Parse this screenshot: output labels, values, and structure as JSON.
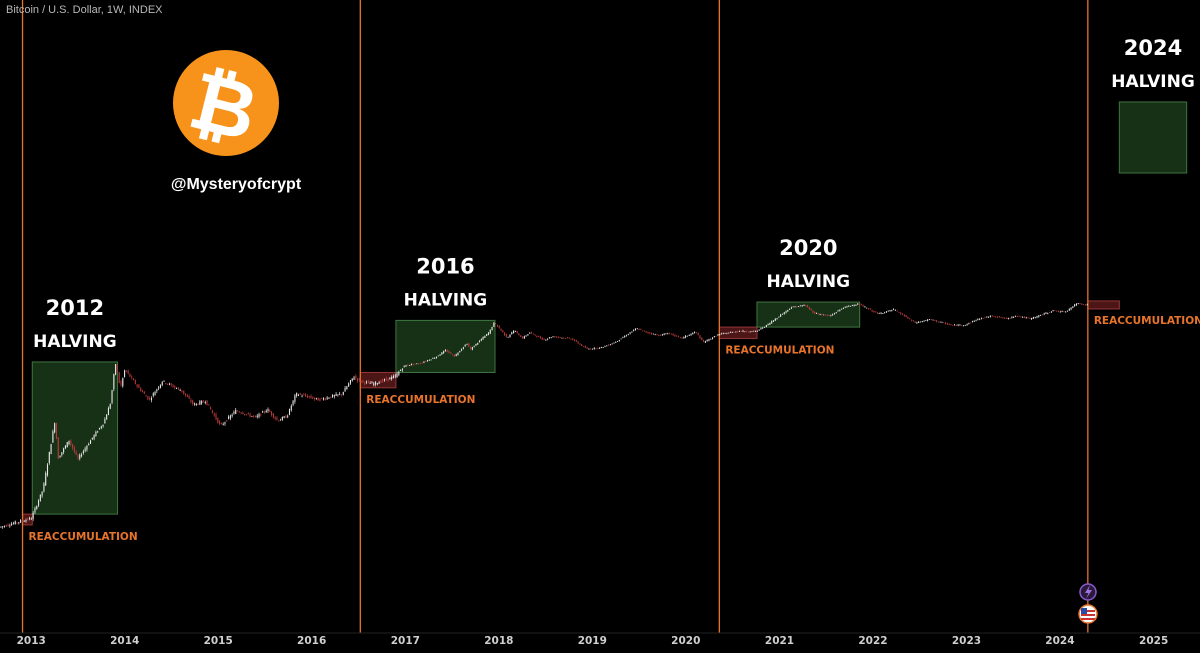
{
  "header": {
    "title": "Bitcoin / U.S. Dollar, 1W, INDEX"
  },
  "watermark": {
    "handle": "@Mysteryofcrypt",
    "logo_glyph": "₿",
    "logo_color": "#f7931a"
  },
  "colors": {
    "background": "#000000",
    "halving_line": "#e8742c",
    "reaccumulation_fill": "#5a1a1a",
    "reaccumulation_border": "#b04040",
    "growth_fill": "#1c3a1c",
    "growth_border": "#4a8a4a",
    "candle_up": "#e8e8e8",
    "candle_down": "#b83a3a",
    "label_white": "#ffffff",
    "label_orange": "#e8742c"
  },
  "icons": [
    "lightning-icon",
    "us-flag-icon"
  ],
  "chart_data": {
    "type": "candlestick",
    "title": "Bitcoin / U.S. Dollar, 1W, INDEX",
    "scale": "log",
    "x_ticks": [
      "2013",
      "2014",
      "2015",
      "2016",
      "2017",
      "2018",
      "2019",
      "2020",
      "2021",
      "2022",
      "2023",
      "2024",
      "2025"
    ],
    "xlim": [
      "2012-09-01",
      "2025-07-01"
    ],
    "halvings": [
      {
        "date": "2012-11-28",
        "year_label": "2012",
        "halving_label": "HALVING",
        "reaccumulation_label": "REACCUMULATION",
        "reaccumulation": {
          "start": "2012-11-28",
          "end": "2013-01-05"
        },
        "growth": {
          "start": "2013-01-05",
          "end": "2013-12-04"
        }
      },
      {
        "date": "2016-07-09",
        "year_label": "2016",
        "halving_label": "HALVING",
        "reaccumulation_label": "REACCUMULATION",
        "reaccumulation": {
          "start": "2016-07-09",
          "end": "2016-11-25"
        },
        "growth": {
          "start": "2016-11-25",
          "end": "2017-12-17"
        }
      },
      {
        "date": "2020-05-11",
        "year_label": "2020",
        "halving_label": "HALVING",
        "reaccumulation_label": "REACCUMULATION",
        "reaccumulation": {
          "start": "2020-05-11",
          "end": "2020-10-05"
        },
        "growth": {
          "start": "2020-10-05",
          "end": "2021-11-10"
        }
      },
      {
        "date": "2024-04-19",
        "year_label": "2024",
        "halving_label": "HALVING",
        "reaccumulation_label": "REACCUMULATION",
        "reaccumulation": {
          "start": "2024-04-19",
          "end": "2024-08-20"
        },
        "growth": {
          "start": "2024-08-20",
          "end": "2025-05-10"
        }
      }
    ],
    "price_path": [
      [
        "2012-09-01",
        10
      ],
      [
        "2012-11-28",
        12
      ],
      [
        "2013-01-05",
        13
      ],
      [
        "2013-02-20",
        30
      ],
      [
        "2013-04-09",
        230
      ],
      [
        "2013-04-17",
        70
      ],
      [
        "2013-06-01",
        120
      ],
      [
        "2013-07-05",
        70
      ],
      [
        "2013-09-01",
        130
      ],
      [
        "2013-10-15",
        200
      ],
      [
        "2013-11-10",
        350
      ],
      [
        "2013-11-30",
        1150
      ],
      [
        "2013-12-18",
        520
      ],
      [
        "2014-01-05",
        900
      ],
      [
        "2014-02-25",
        550
      ],
      [
        "2014-04-10",
        380
      ],
      [
        "2014-06-01",
        650
      ],
      [
        "2014-08-15",
        490
      ],
      [
        "2014-10-01",
        330
      ],
      [
        "2014-11-15",
        370
      ],
      [
        "2015-01-14",
        180
      ],
      [
        "2015-03-15",
        280
      ],
      [
        "2015-06-01",
        230
      ],
      [
        "2015-07-15",
        290
      ],
      [
        "2015-08-25",
        210
      ],
      [
        "2015-10-01",
        240
      ],
      [
        "2015-11-04",
        450
      ],
      [
        "2015-12-15",
        420
      ],
      [
        "2016-02-01",
        380
      ],
      [
        "2016-05-01",
        450
      ],
      [
        "2016-06-17",
        740
      ],
      [
        "2016-07-09",
        650
      ],
      [
        "2016-09-01",
        600
      ],
      [
        "2016-11-25",
        740
      ],
      [
        "2017-01-05",
        1050
      ],
      [
        "2017-03-01",
        1200
      ],
      [
        "2017-05-01",
        1800
      ],
      [
        "2017-06-10",
        2900
      ],
      [
        "2017-07-15",
        1950
      ],
      [
        "2017-09-01",
        4700
      ],
      [
        "2017-09-15",
        3100
      ],
      [
        "2017-11-08",
        7400
      ],
      [
        "2017-11-28",
        10000
      ],
      [
        "2017-12-17",
        19500
      ],
      [
        "2018-02-06",
        6900
      ],
      [
        "2018-03-05",
        11400
      ],
      [
        "2018-04-06",
        6600
      ],
      [
        "2018-05-05",
        9800
      ],
      [
        "2018-06-29",
        5900
      ],
      [
        "2018-08-01",
        7500
      ],
      [
        "2018-10-15",
        6400
      ],
      [
        "2018-11-20",
        4200
      ],
      [
        "2018-12-15",
        3200
      ],
      [
        "2019-02-08",
        3500
      ],
      [
        "2019-04-02",
        5000
      ],
      [
        "2019-05-15",
        8000
      ],
      [
        "2019-06-26",
        13000
      ],
      [
        "2019-08-01",
        10000
      ],
      [
        "2019-09-25",
        8000
      ],
      [
        "2019-10-26",
        9500
      ],
      [
        "2019-12-18",
        6600
      ],
      [
        "2020-02-12",
        10300
      ],
      [
        "2020-03-12",
        5000
      ],
      [
        "2020-05-11",
        8600
      ],
      [
        "2020-07-27",
        10800
      ],
      [
        "2020-10-05",
        10600
      ],
      [
        "2020-11-15",
        16000
      ],
      [
        "2020-12-31",
        29000
      ],
      [
        "2021-02-20",
        55000
      ],
      [
        "2021-04-14",
        63000
      ],
      [
        "2021-05-19",
        37000
      ],
      [
        "2021-07-20",
        30000
      ],
      [
        "2021-09-07",
        52000
      ],
      [
        "2021-10-20",
        65000
      ],
      [
        "2021-11-10",
        68000
      ],
      [
        "2022-01-24",
        35000
      ],
      [
        "2022-03-28",
        47000
      ],
      [
        "2022-06-18",
        19000
      ],
      [
        "2022-08-15",
        24000
      ],
      [
        "2022-11-09",
        16000
      ],
      [
        "2023-01-01",
        16600
      ],
      [
        "2023-02-15",
        24000
      ],
      [
        "2023-04-14",
        30500
      ],
      [
        "2023-06-15",
        25000
      ],
      [
        "2023-07-15",
        31000
      ],
      [
        "2023-09-11",
        25000
      ],
      [
        "2023-12-10",
        44000
      ],
      [
        "2024-01-23",
        39000
      ],
      [
        "2024-03-14",
        73000
      ],
      [
        "2024-04-19",
        64000
      ]
    ]
  }
}
